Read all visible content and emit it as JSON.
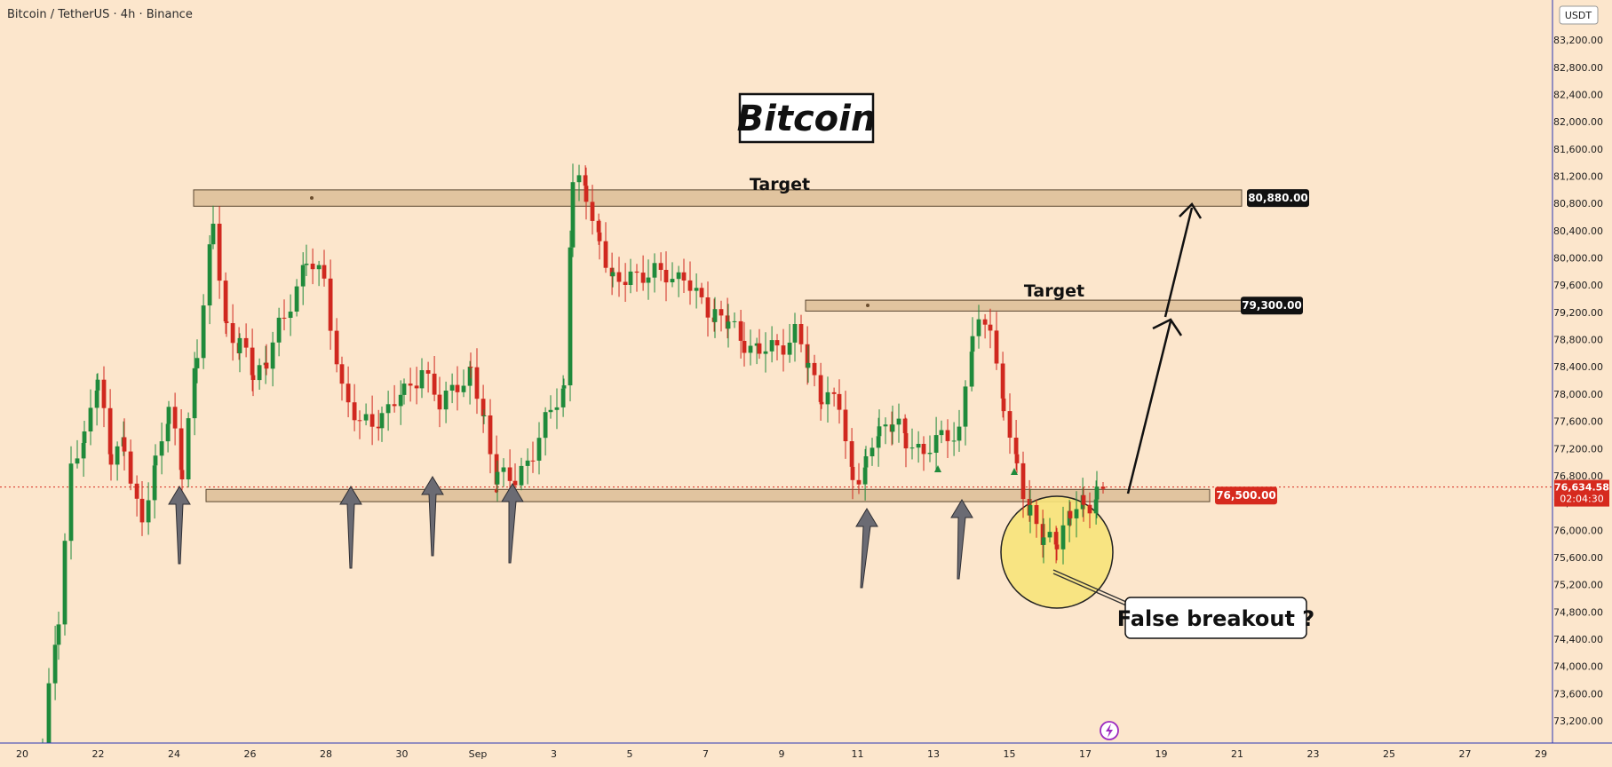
{
  "header": {
    "symbol": "Bitcoin / TetherUS · 4h · Binance",
    "currency": "USDT"
  },
  "colors": {
    "background": "#fce6cc",
    "up": "#1f8a3b",
    "down": "#d0281f",
    "zone_fill": "#dcbd96",
    "axis_line": "#2a35b4",
    "price_red": "#d62a1e",
    "label_black": "#111111",
    "highlight": "#f7e37a"
  },
  "chart_data": {
    "type": "candlestick",
    "title": "Bitcoin",
    "x_ticks": [
      "20",
      "22",
      "24",
      "26",
      "28",
      "30",
      "Sep",
      "3",
      "5",
      "7",
      "9",
      "11",
      "13",
      "15",
      "17",
      "19",
      "21",
      "23",
      "25",
      "27",
      "29"
    ],
    "y_ticks": [
      73200,
      73600,
      74000,
      74400,
      74800,
      75200,
      75600,
      76000,
      76400,
      76800,
      77200,
      77600,
      78000,
      78400,
      78800,
      79200,
      79600,
      80000,
      80400,
      80800,
      81200,
      81600,
      82000,
      82400,
      82800,
      83200
    ],
    "ylim": [
      72900,
      83450
    ],
    "levels": [
      {
        "name": "target_upper",
        "label": "Target",
        "price_label": "80,880.00",
        "low": 80760,
        "high": 81000
      },
      {
        "name": "target_lower",
        "label": "Target",
        "price_label": "79,300.00",
        "low": 79220,
        "high": 79380
      },
      {
        "name": "support",
        "label": "",
        "price_label": "76,500.00",
        "low": 76420,
        "high": 76600
      }
    ],
    "current_price": {
      "value": "76,634.58",
      "countdown": "02:04:30",
      "price": 76634.58
    },
    "annotations": [
      {
        "type": "callout",
        "text": "False breakout ?"
      }
    ],
    "grid": false
  }
}
